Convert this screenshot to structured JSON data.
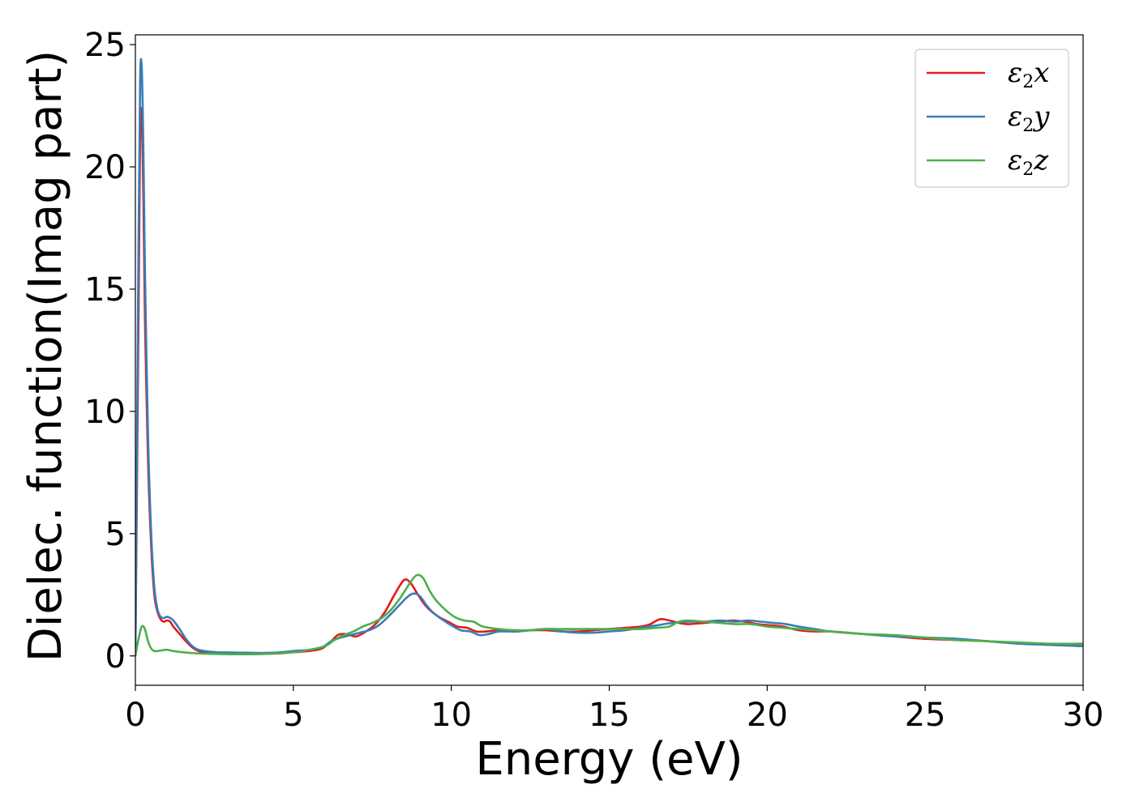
{
  "chart_data": {
    "type": "line",
    "title": "",
    "xlabel": "Energy (eV)",
    "ylabel": "Dielec. function(Imag part)",
    "xlim": [
      0,
      30
    ],
    "ylim": [
      -1.2,
      25.4
    ],
    "xticks": [
      0,
      5,
      10,
      15,
      20,
      25,
      30
    ],
    "yticks": [
      0,
      5,
      10,
      15,
      20,
      25
    ],
    "grid": false,
    "legend_position": "top-right",
    "series": [
      {
        "name": "ε2x",
        "legend_base": "ε",
        "legend_sub": "2",
        "legend_var": "x",
        "color": "#e41a1c",
        "x": [
          0,
          0.1,
          0.15,
          0.2,
          0.25,
          0.3,
          0.4,
          0.5,
          0.6,
          0.7,
          0.8,
          0.9,
          1.0,
          1.1,
          1.2,
          1.4,
          1.6,
          1.8,
          2.0,
          2.3,
          2.6,
          3.0,
          3.5,
          4.0,
          4.5,
          5.0,
          5.5,
          5.9,
          6.2,
          6.4,
          6.6,
          6.8,
          7.0,
          7.3,
          7.6,
          7.9,
          8.2,
          8.5,
          8.7,
          8.9,
          9.1,
          9.3,
          9.6,
          9.9,
          10.2,
          10.5,
          10.8,
          11.1,
          11.5,
          12.0,
          12.5,
          13.0,
          13.5,
          14.0,
          14.5,
          15.0,
          15.5,
          16.0,
          16.3,
          16.6,
          16.9,
          17.2,
          17.5,
          18.0,
          18.5,
          18.9,
          19.3,
          19.7,
          20.1,
          20.5,
          21.0,
          21.5,
          22.0,
          23.0,
          24.0,
          25.0,
          26.0,
          27.0,
          28.0,
          29.0,
          30.0
        ],
        "values": [
          0,
          14,
          21.5,
          22.0,
          19,
          14,
          8,
          4.5,
          2.5,
          1.8,
          1.5,
          1.4,
          1.45,
          1.4,
          1.2,
          0.9,
          0.6,
          0.35,
          0.2,
          0.12,
          0.1,
          0.08,
          0.07,
          0.08,
          0.1,
          0.15,
          0.2,
          0.3,
          0.6,
          0.85,
          0.9,
          0.85,
          0.8,
          1.0,
          1.3,
          1.8,
          2.5,
          3.1,
          3.0,
          2.6,
          2.2,
          1.9,
          1.6,
          1.4,
          1.2,
          1.15,
          1.0,
          1.0,
          1.05,
          1.0,
          1.05,
          1.05,
          1.0,
          1.0,
          1.05,
          1.1,
          1.15,
          1.2,
          1.3,
          1.5,
          1.45,
          1.35,
          1.3,
          1.35,
          1.4,
          1.45,
          1.4,
          1.3,
          1.25,
          1.2,
          1.05,
          1.0,
          1.0,
          0.9,
          0.8,
          0.7,
          0.65,
          0.6,
          0.5,
          0.45,
          0.4
        ]
      },
      {
        "name": "ε2y",
        "legend_base": "ε",
        "legend_sub": "2",
        "legend_var": "y",
        "color": "#377eb8",
        "x": [
          0,
          0.1,
          0.15,
          0.2,
          0.25,
          0.3,
          0.4,
          0.5,
          0.6,
          0.7,
          0.8,
          0.9,
          1.0,
          1.1,
          1.2,
          1.4,
          1.6,
          1.8,
          2.0,
          2.3,
          2.6,
          3.0,
          3.5,
          4.0,
          4.5,
          5.0,
          5.5,
          5.9,
          6.2,
          6.5,
          6.8,
          7.1,
          7.4,
          7.7,
          8.0,
          8.3,
          8.6,
          8.8,
          9.0,
          9.2,
          9.4,
          9.7,
          10.0,
          10.3,
          10.6,
          10.9,
          11.2,
          11.5,
          12.0,
          12.5,
          13.0,
          13.5,
          14.0,
          14.5,
          15.0,
          15.5,
          16.0,
          16.5,
          17.0,
          17.5,
          18.0,
          18.5,
          19.0,
          19.4,
          19.8,
          20.2,
          20.6,
          21.0,
          21.5,
          22.0,
          23.0,
          24.0,
          25.0,
          26.0,
          27.0,
          28.0,
          29.0,
          30.0
        ],
        "values": [
          0,
          17,
          23.5,
          24.1,
          21,
          16,
          9,
          5.0,
          2.8,
          1.9,
          1.6,
          1.55,
          1.6,
          1.55,
          1.45,
          1.1,
          0.7,
          0.4,
          0.25,
          0.18,
          0.15,
          0.14,
          0.13,
          0.12,
          0.14,
          0.2,
          0.25,
          0.35,
          0.6,
          0.75,
          0.85,
          0.95,
          1.05,
          1.25,
          1.6,
          2.0,
          2.4,
          2.55,
          2.45,
          2.1,
          1.8,
          1.5,
          1.25,
          1.05,
          1.0,
          0.85,
          0.9,
          1.0,
          1.0,
          1.05,
          1.1,
          1.0,
          0.95,
          0.95,
          1.0,
          1.05,
          1.15,
          1.25,
          1.35,
          1.4,
          1.4,
          1.45,
          1.4,
          1.45,
          1.4,
          1.35,
          1.3,
          1.2,
          1.1,
          1.0,
          0.9,
          0.8,
          0.75,
          0.7,
          0.6,
          0.5,
          0.45,
          0.4
        ]
      },
      {
        "name": "ε2z",
        "legend_base": "ε",
        "legend_sub": "2",
        "legend_var": "z",
        "color": "#4daf4a",
        "x": [
          0,
          0.1,
          0.2,
          0.3,
          0.4,
          0.5,
          0.6,
          0.7,
          0.8,
          1.0,
          1.2,
          1.5,
          2.0,
          2.5,
          3.0,
          4.0,
          5.0,
          5.5,
          6.0,
          6.3,
          6.6,
          6.9,
          7.2,
          7.5,
          7.8,
          8.1,
          8.4,
          8.7,
          8.9,
          9.1,
          9.3,
          9.5,
          9.8,
          10.1,
          10.4,
          10.7,
          11.0,
          11.5,
          12.0,
          12.5,
          13.0,
          13.5,
          14.0,
          14.5,
          15.0,
          15.5,
          16.0,
          16.5,
          16.9,
          17.2,
          17.5,
          18.0,
          18.5,
          19.0,
          19.5,
          20.0,
          20.5,
          21.0,
          21.5,
          22.0,
          23.0,
          24.0,
          25.0,
          26.0,
          27.0,
          28.0,
          29.0,
          30.0
        ],
        "values": [
          0,
          0.7,
          1.2,
          1.1,
          0.6,
          0.3,
          0.2,
          0.2,
          0.22,
          0.25,
          0.2,
          0.15,
          0.1,
          0.08,
          0.07,
          0.08,
          0.15,
          0.25,
          0.4,
          0.65,
          0.85,
          1.0,
          1.2,
          1.35,
          1.55,
          1.9,
          2.4,
          3.0,
          3.3,
          3.2,
          2.7,
          2.3,
          1.9,
          1.6,
          1.45,
          1.4,
          1.2,
          1.1,
          1.05,
          1.05,
          1.1,
          1.1,
          1.1,
          1.1,
          1.1,
          1.1,
          1.1,
          1.15,
          1.2,
          1.4,
          1.45,
          1.4,
          1.35,
          1.3,
          1.3,
          1.2,
          1.15,
          1.1,
          1.05,
          1.0,
          0.9,
          0.85,
          0.75,
          0.65,
          0.6,
          0.55,
          0.5,
          0.5
        ]
      }
    ]
  }
}
